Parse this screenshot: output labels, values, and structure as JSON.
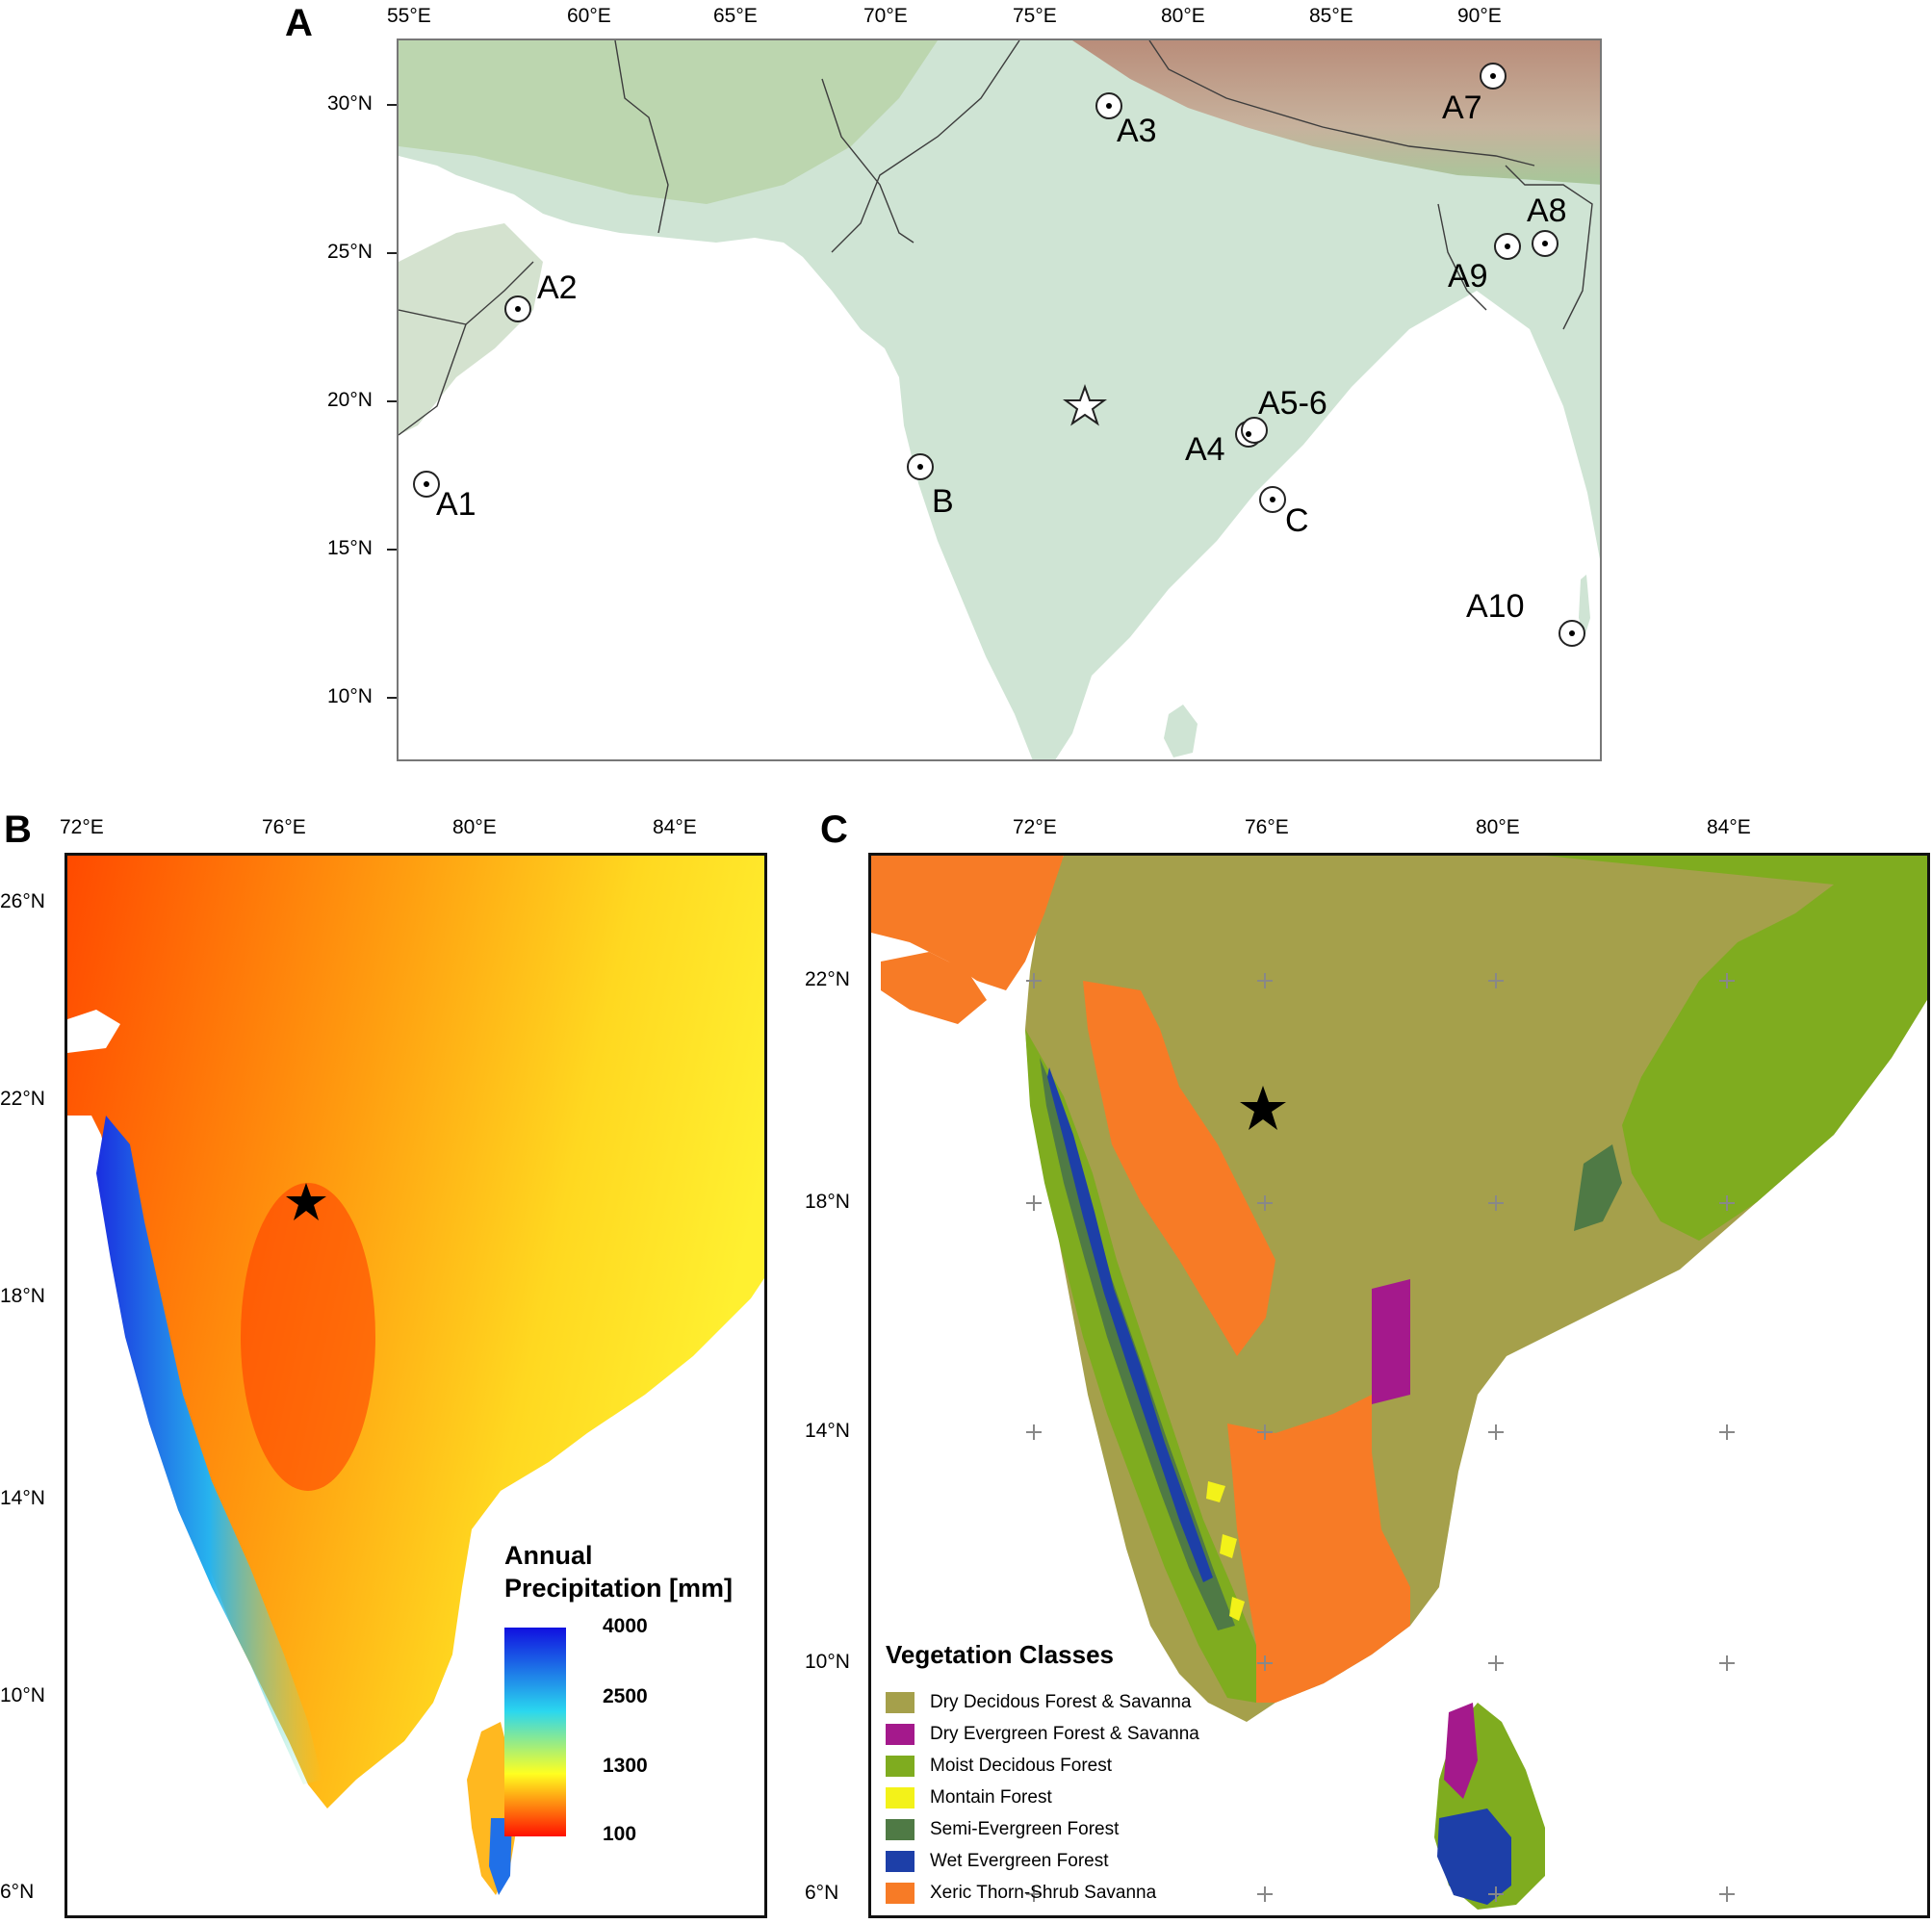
{
  "panels": {
    "a": {
      "letter": "A",
      "lon_labels": [
        "55°E",
        "60°E",
        "65°E",
        "70°E",
        "75°E",
        "80°E",
        "85°E",
        "90°E"
      ],
      "lat_labels": [
        "30°N",
        "25°N",
        "20°N",
        "15°N",
        "10°N"
      ],
      "sites": [
        "A1",
        "A2",
        "A3",
        "A4",
        "A5-6",
        "A7",
        "A8",
        "A9",
        "A10",
        "B",
        "C"
      ]
    },
    "b": {
      "letter": "B",
      "lon_labels": [
        "72°E",
        "76°E",
        "80°E",
        "84°E"
      ],
      "lat_labels": [
        "26°N",
        "22°N",
        "18°N",
        "14°N",
        "10°N",
        "6°N"
      ],
      "legend": {
        "title_line1": "Annual",
        "title_line2": "Precipitation [mm]",
        "ticks": [
          "4000",
          "2500",
          "1300",
          "100"
        ],
        "colors": [
          "#1010e0",
          "#2ad7ef",
          "#ffff20",
          "#ff1000"
        ]
      }
    },
    "c": {
      "letter": "C",
      "lon_labels": [
        "72°E",
        "76°E",
        "80°E",
        "84°E"
      ],
      "lat_labels": [
        "22°N",
        "18°N",
        "14°N",
        "10°N",
        "6°N"
      ],
      "legend": {
        "title": "Vegetation Classes",
        "items": [
          {
            "label": "Dry Decidous Forest & Savanna",
            "color": "#a5a04b"
          },
          {
            "label": "Dry Evergreen Forest & Savanna",
            "color": "#a4198c"
          },
          {
            "label": "Moist Decidous Forest",
            "color": "#7fac1f"
          },
          {
            "label": "Montain Forest",
            "color": "#f3f219"
          },
          {
            "label": "Semi-Evergreen Forest",
            "color": "#4f7a45"
          },
          {
            "label": "Wet Evergreen Forest",
            "color": "#1d3fa8"
          },
          {
            "label": "Xeric Thorn-Shrub Savanna",
            "color": "#f77b26"
          }
        ]
      }
    }
  }
}
